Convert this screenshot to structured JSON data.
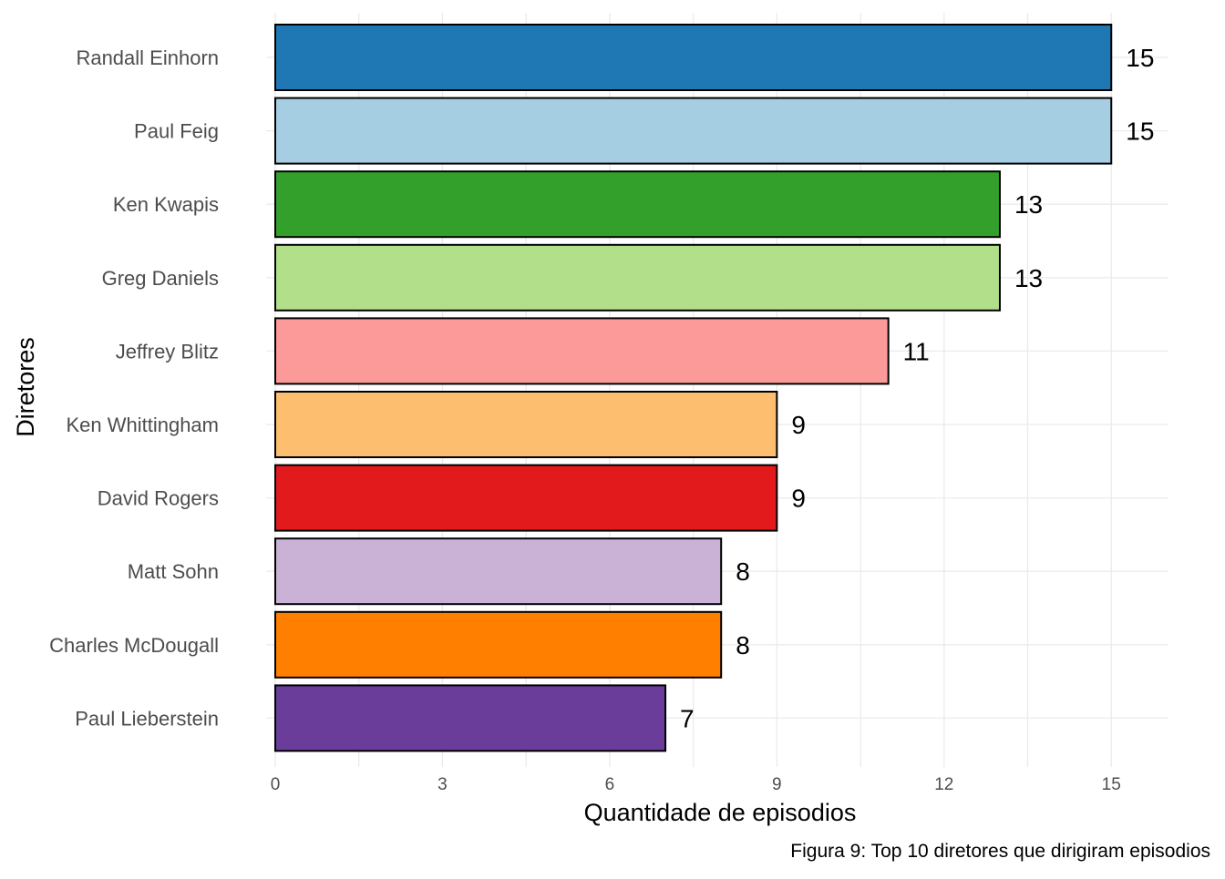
{
  "chart_data": {
    "type": "bar",
    "orientation": "horizontal",
    "categories": [
      "Randall Einhorn",
      "Paul Feig",
      "Ken Kwapis",
      "Greg Daniels",
      "Jeffrey Blitz",
      "Ken Whittingham",
      "David Rogers",
      "Matt Sohn",
      "Charles McDougall",
      "Paul Lieberstein"
    ],
    "values": [
      15,
      15,
      13,
      13,
      11,
      9,
      9,
      8,
      8,
      7
    ],
    "colors": [
      "#1F78B4",
      "#A6CEE3",
      "#33A02C",
      "#B2DF8A",
      "#FB9A99",
      "#FDBF6F",
      "#E31A1C",
      "#CAB2D6",
      "#FF7F00",
      "#6A3D9A"
    ],
    "xlabel": "Quantidade de episodios",
    "ylabel": "Diretores",
    "caption": "Figura 9: Top 10 diretores que dirigiram episodios",
    "xlim": [
      0,
      16
    ],
    "xticks": [
      0,
      3,
      6,
      9,
      12,
      15
    ],
    "grid": true,
    "data_labels": true,
    "legend": "none"
  }
}
